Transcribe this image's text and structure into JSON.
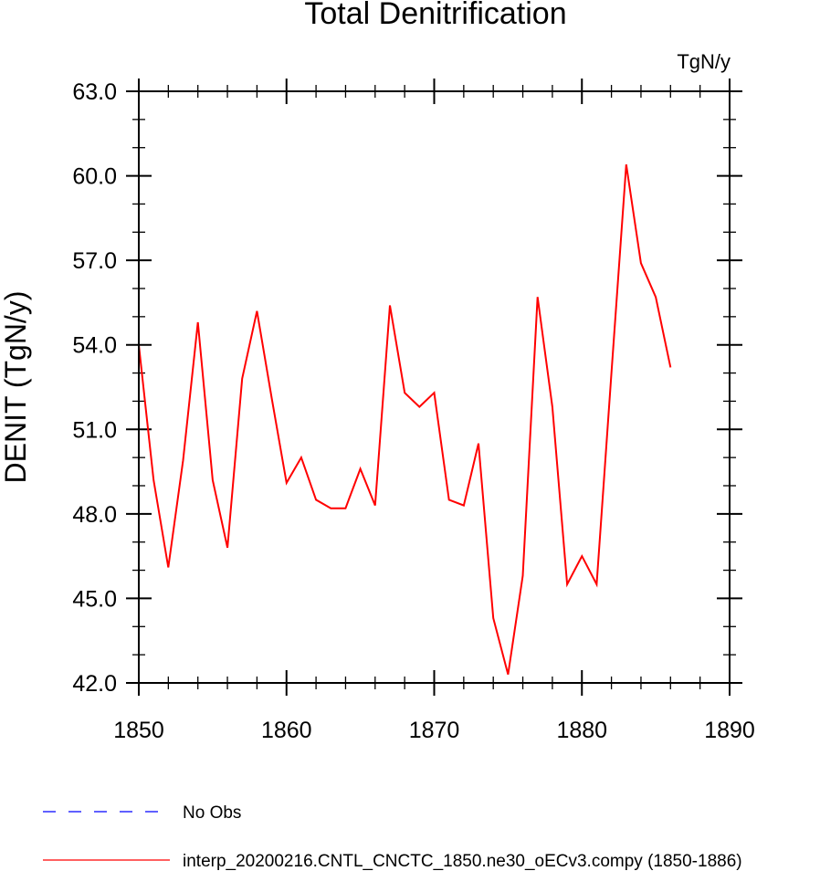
{
  "chart_data": {
    "type": "line",
    "title": "Total Denitrification",
    "units": "TgN/y",
    "ylabel": "DENIT  (TgN/y)",
    "xlabel": "",
    "xlim": [
      1850,
      1890
    ],
    "ylim": [
      42.0,
      63.0
    ],
    "x_ticks": [
      "1850",
      "1860",
      "1870",
      "1880",
      "1890"
    ],
    "y_ticks": [
      "42.0",
      "45.0",
      "48.0",
      "51.0",
      "54.0",
      "57.0",
      "60.0",
      "63.0"
    ],
    "grid": false,
    "legend_position": "bottom-left",
    "series": [
      {
        "name": "No Obs",
        "color": "#0000ff",
        "style": "dashed",
        "x": [],
        "values": []
      },
      {
        "name": "interp_20200216.CNTL_CNCTC_1850.ne30_oECv3.compy (1850-1886)",
        "color": "#ff0000",
        "style": "solid",
        "x": [
          1850,
          1851,
          1852,
          1853,
          1854,
          1855,
          1856,
          1857,
          1858,
          1859,
          1860,
          1861,
          1862,
          1863,
          1864,
          1865,
          1866,
          1867,
          1868,
          1869,
          1870,
          1871,
          1872,
          1873,
          1874,
          1875,
          1876,
          1877,
          1878,
          1879,
          1880,
          1881,
          1882,
          1883,
          1884,
          1885,
          1886
        ],
        "values": [
          54.0,
          49.2,
          46.1,
          49.9,
          54.8,
          49.2,
          46.8,
          52.8,
          55.2,
          52.1,
          49.1,
          50.0,
          48.5,
          48.2,
          48.2,
          49.6,
          48.3,
          55.4,
          52.3,
          51.8,
          52.3,
          48.5,
          48.3,
          50.5,
          44.3,
          42.3,
          45.8,
          55.7,
          51.8,
          45.5,
          46.5,
          45.5,
          53.0,
          60.4,
          56.9,
          55.7,
          53.2
        ]
      }
    ]
  }
}
